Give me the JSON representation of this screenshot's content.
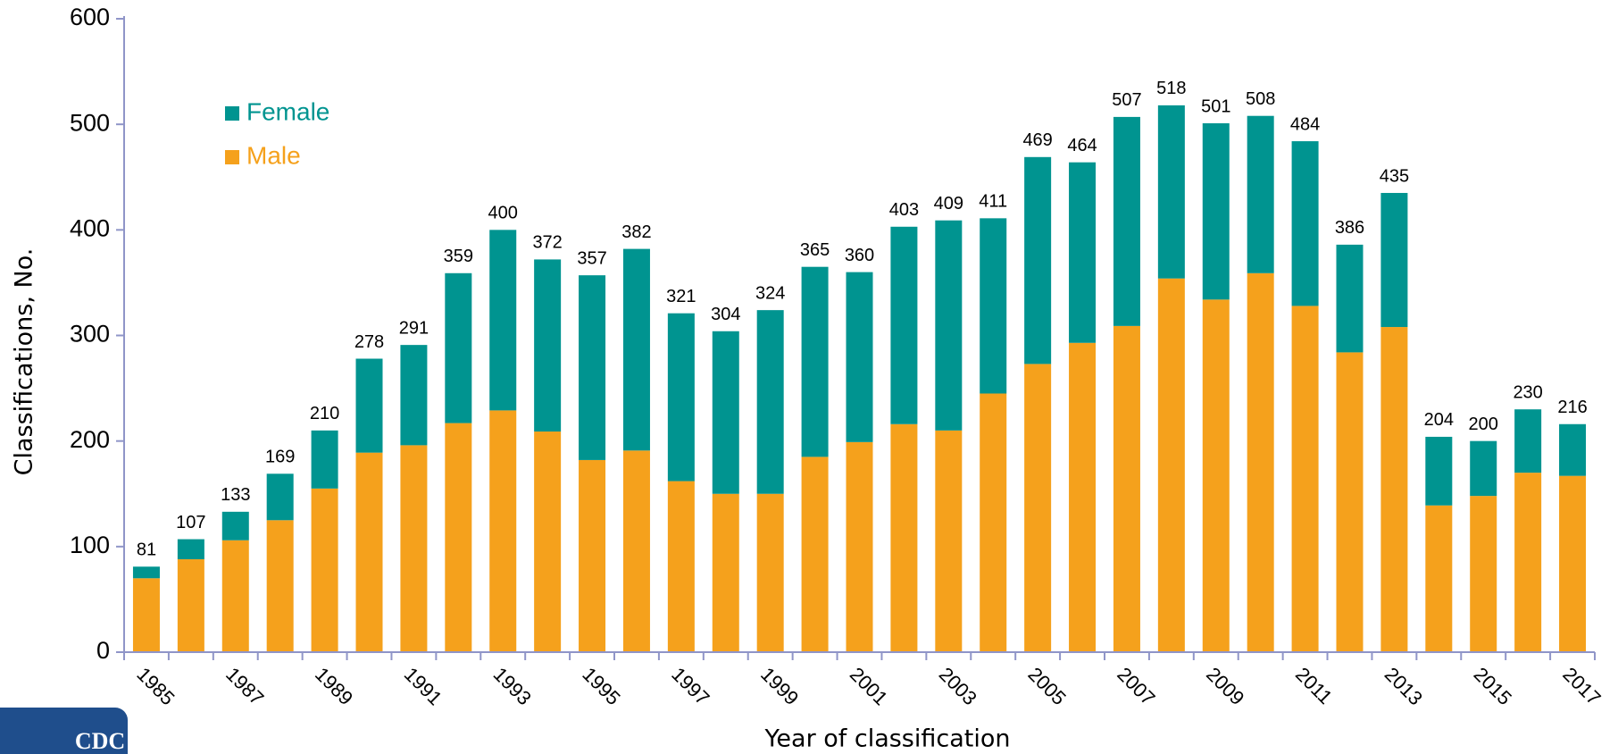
{
  "chart_data": {
    "type": "stacked_bar",
    "x_label": "Year of classification",
    "y_label": "Classifications, No.",
    "categories": [
      "1985",
      null,
      "1987",
      null,
      "1989",
      null,
      "1991",
      null,
      "1993",
      null,
      "1995",
      null,
      "1997",
      null,
      "1999",
      null,
      "2001",
      null,
      "2003",
      null,
      "2005",
      null,
      "2007",
      null,
      "2009",
      null,
      "2011",
      null,
      "2013",
      null,
      "2015",
      null,
      "2017"
    ],
    "series": [
      {
        "name": "Male",
        "color": "#f5a11c",
        "values": [
          70,
          88,
          106,
          125,
          155,
          189,
          196,
          217,
          229,
          209,
          182,
          191,
          162,
          150,
          150,
          185,
          199,
          216,
          210,
          245,
          273,
          293,
          309,
          354,
          334,
          359,
          328,
          284,
          308,
          139,
          148,
          170,
          167
        ]
      },
      {
        "name": "Female",
        "color": "#009490",
        "values": [
          11,
          19,
          27,
          44,
          55,
          89,
          95,
          142,
          171,
          163,
          175,
          191,
          159,
          154,
          174,
          180,
          161,
          187,
          199,
          166,
          196,
          171,
          198,
          164,
          167,
          149,
          156,
          102,
          127,
          65,
          52,
          60,
          49
        ]
      }
    ],
    "totals": [
      81,
      107,
      133,
      169,
      210,
      278,
      291,
      359,
      400,
      372,
      357,
      382,
      321,
      304,
      324,
      365,
      360,
      403,
      409,
      411,
      469,
      464,
      507,
      518,
      501,
      508,
      484,
      386,
      435,
      204,
      200,
      230,
      216
    ],
    "ylim": [
      0,
      600
    ],
    "yticks": [
      0,
      100,
      200,
      300,
      400,
      500,
      600
    ],
    "grid": false,
    "legend": "upper left",
    "logo_text": "CDC"
  }
}
